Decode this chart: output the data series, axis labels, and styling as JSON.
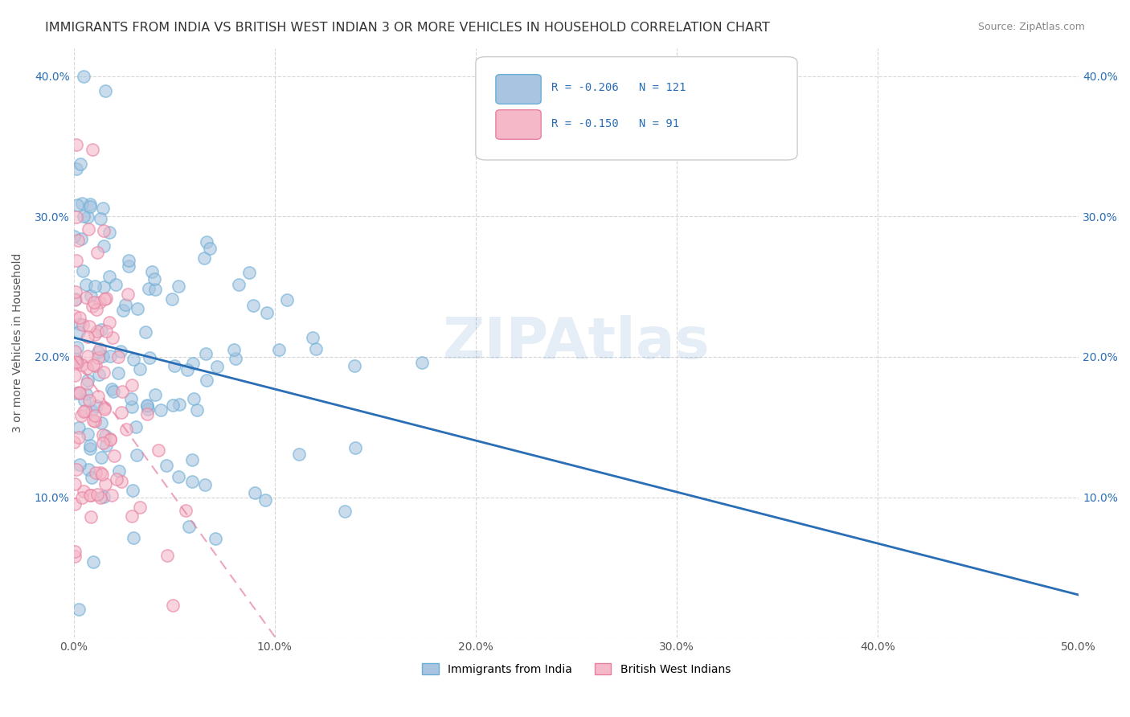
{
  "title": "IMMIGRANTS FROM INDIA VS BRITISH WEST INDIAN 3 OR MORE VEHICLES IN HOUSEHOLD CORRELATION CHART",
  "source": "Source: ZipAtlas.com",
  "ylabel": "3 or more Vehicles in Household",
  "xlabel_bottom": "",
  "xlim": [
    0.0,
    0.5
  ],
  "ylim": [
    0.0,
    0.42
  ],
  "xticks": [
    0.0,
    0.1,
    0.2,
    0.3,
    0.4,
    0.5
  ],
  "yticks": [
    0.0,
    0.1,
    0.2,
    0.3,
    0.4
  ],
  "xticklabels": [
    "0.0%",
    "10.0%",
    "20.0%",
    "30.0%",
    "40.0%",
    "50.0%"
  ],
  "yticklabels": [
    "",
    "10.0%",
    "20.0%",
    "30.0%",
    "40.0%"
  ],
  "india_color": "#a8c4e0",
  "india_edge_color": "#6aaed6",
  "bwi_color": "#f4b8c8",
  "bwi_edge_color": "#e87fa0",
  "india_line_color": "#2a6eb5",
  "bwi_line_color": "#d94f7a",
  "bwi_line_dash": [
    6,
    4
  ],
  "india_R": -0.206,
  "india_N": 121,
  "bwi_R": -0.15,
  "bwi_N": 91,
  "legend_R_color": "#2a6eb5",
  "legend_N_color": "#2a6eb5",
  "marker_size": 120,
  "alpha": 0.6,
  "seed": 42,
  "background_color": "#ffffff",
  "grid_color": "#cccccc",
  "legend_label_india": "Immigrants from India",
  "legend_label_bwi": "British West Indians",
  "title_fontsize": 11.5,
  "source_fontsize": 9,
  "axis_label_fontsize": 10,
  "tick_fontsize": 10,
  "legend_fontsize": 10,
  "watermark_text": "ZIPAtlas",
  "watermark_alpha": 0.12,
  "watermark_fontsize": 52,
  "watermark_color": "#2a6eb5"
}
